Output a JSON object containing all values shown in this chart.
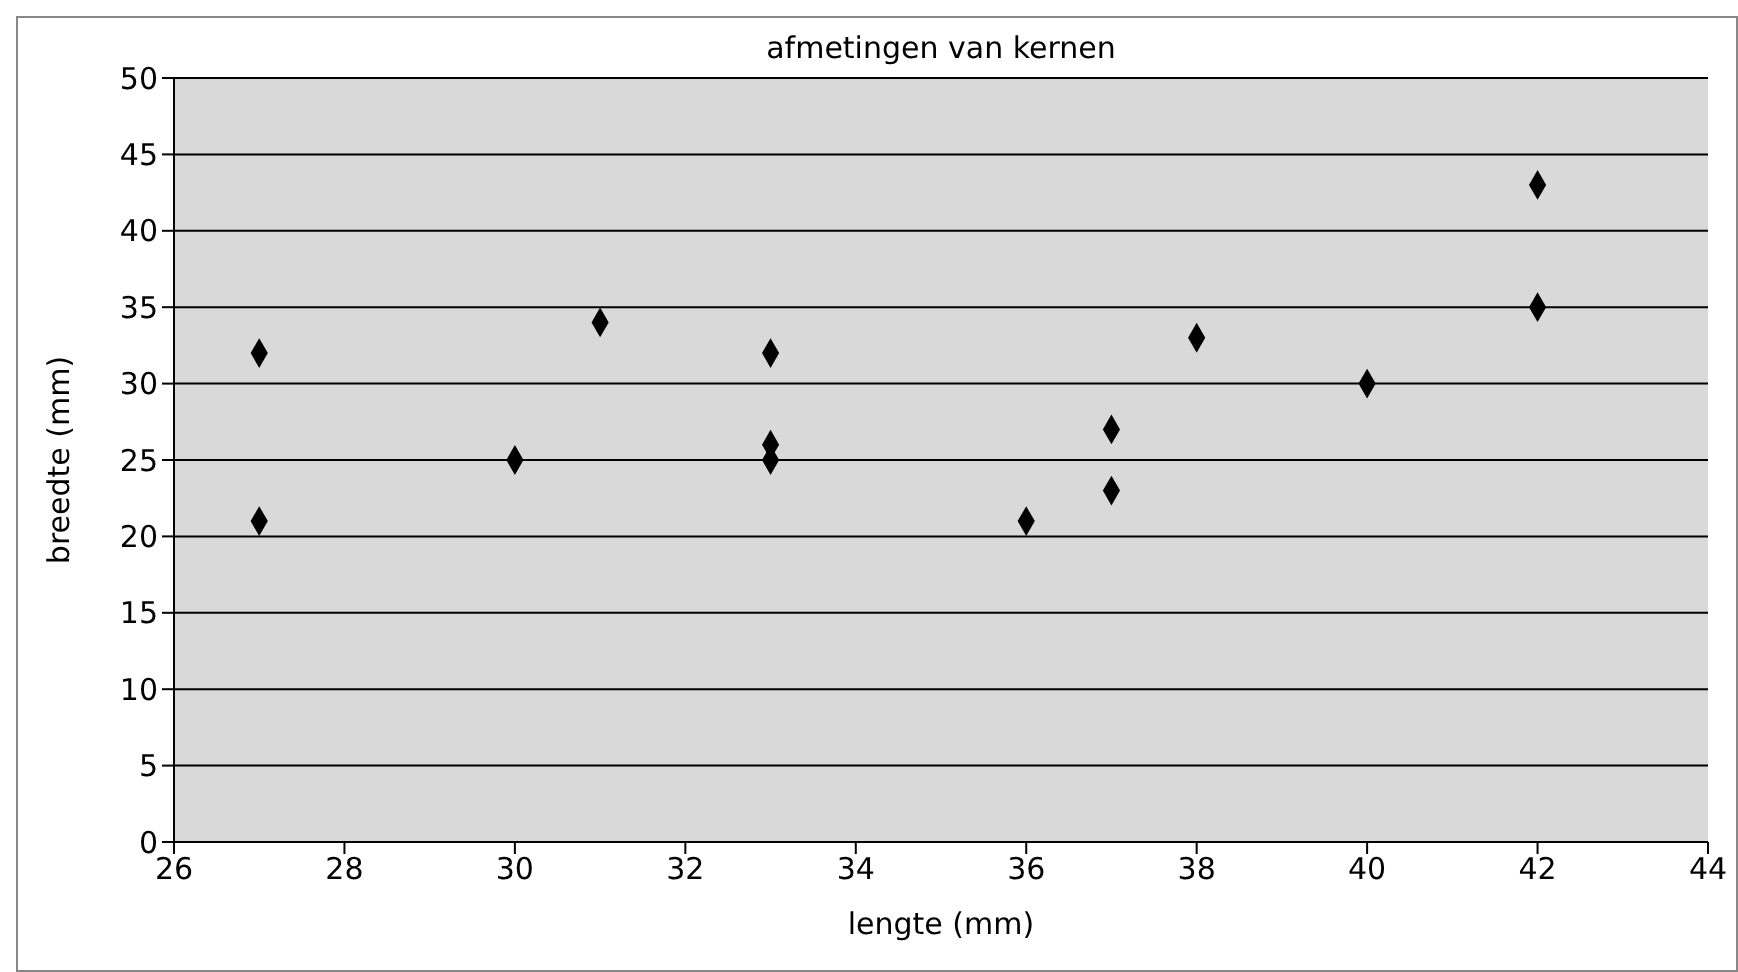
{
  "chart_data": {
    "type": "scatter",
    "title": "afmetingen van kernen",
    "xlabel": "lengte (mm)",
    "ylabel": "breedte (mm)",
    "x": [
      27,
      27,
      30,
      31,
      33,
      33,
      33,
      36,
      37,
      37,
      38,
      40,
      42,
      42
    ],
    "values": [
      32,
      21,
      25,
      34,
      32,
      26,
      25,
      21,
      27,
      23,
      33,
      30,
      43,
      35
    ],
    "color": "#000000",
    "marker": "diamond",
    "xlim": [
      26,
      44
    ],
    "xticks": [
      26,
      28,
      30,
      32,
      34,
      36,
      38,
      40,
      42,
      44
    ],
    "ylim": [
      0,
      50
    ],
    "yticks": [
      0,
      5,
      10,
      15,
      20,
      25,
      30,
      35,
      40,
      45,
      50
    ],
    "grid": "y"
  }
}
